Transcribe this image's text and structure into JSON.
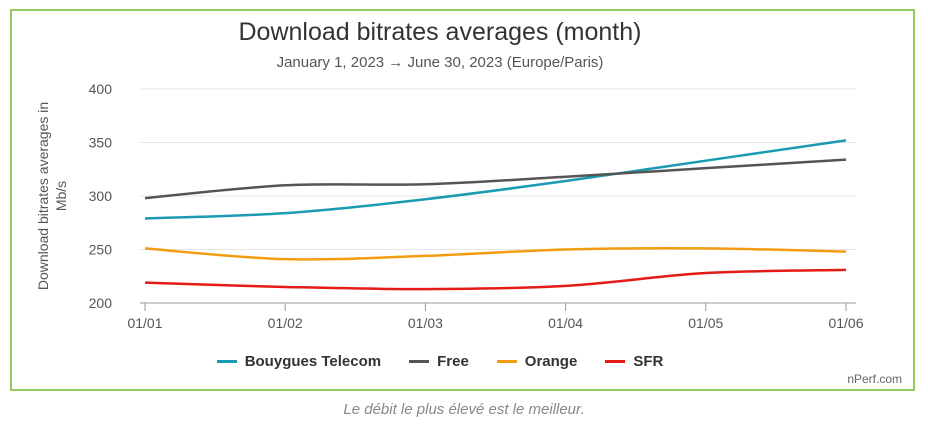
{
  "chart_data": {
    "type": "line",
    "title": "Download bitrates averages (month)",
    "subtitle": "January 1, 2023 → June 30, 2023 (Europe/Paris)",
    "ylabel_lines": [
      "Download bitrates averages in",
      "Mb/s"
    ],
    "xlabel": "",
    "categories": [
      "01/01",
      "01/02",
      "01/03",
      "01/04",
      "01/05",
      "01/06"
    ],
    "yticks": [
      200,
      250,
      300,
      350,
      400
    ],
    "ylim": [
      200,
      400
    ],
    "grid": "horizontal",
    "legend_position": "bottom",
    "series": [
      {
        "name": "Bouygues Telecom",
        "color": "#1a9bb3",
        "values": [
          279,
          284,
          297,
          314,
          333,
          352
        ]
      },
      {
        "name": "Free",
        "color": "#555555",
        "values": [
          298,
          310,
          311,
          318,
          326,
          334
        ]
      },
      {
        "name": "Orange",
        "color": "#f39c12",
        "values": [
          251,
          241,
          244,
          250,
          251,
          248
        ]
      },
      {
        "name": "SFR",
        "color": "#e41b17",
        "values": [
          219,
          215,
          213,
          216,
          228,
          231
        ]
      }
    ]
  },
  "credit": "nPerf.com",
  "caption": "Le débit le plus élevé est le meilleur."
}
